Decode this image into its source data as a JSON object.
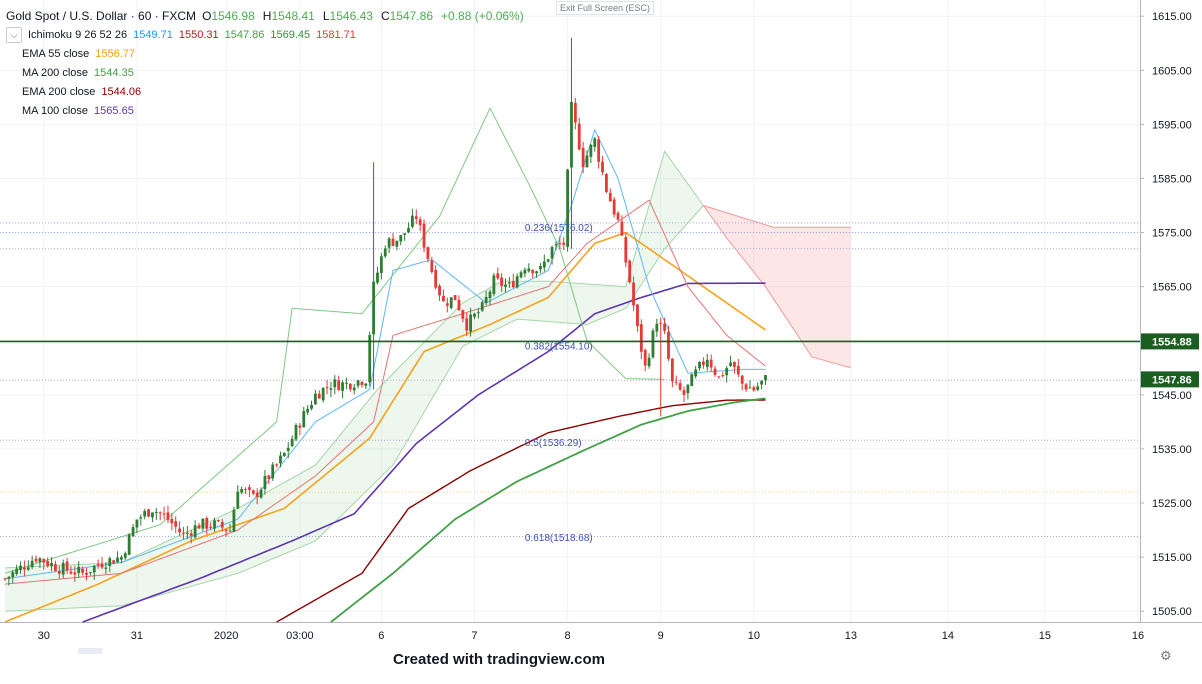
{
  "header": {
    "symbol_title": "Gold Spot / U.S. Dollar · 60 · FXCM",
    "ohlc": [
      {
        "k": "O",
        "v": "1546.98"
      },
      {
        "k": "H",
        "v": "1548.41"
      },
      {
        "k": "L",
        "v": "1546.43"
      },
      {
        "k": "C",
        "v": "1547.86"
      }
    ],
    "change": "+0.88 (+0.06%)",
    "exit_fullscreen": "Exit Full Screen (ESC)"
  },
  "indicators": [
    {
      "name": "Ichimoku 9 26 52 26",
      "values": [
        {
          "v": "1549.71",
          "color": "#2196f3"
        },
        {
          "v": "1550.31",
          "color": "#b71c1c"
        },
        {
          "v": "1547.86",
          "color": "#43a047"
        },
        {
          "v": "1569.45",
          "color": "#388e3c"
        },
        {
          "v": "1581.71",
          "color": "#e53935"
        }
      ]
    },
    {
      "name": "EMA 55 close",
      "values": [
        {
          "v": "1556.77",
          "color": "#f7a21b"
        }
      ]
    },
    {
      "name": "MA 200 close",
      "values": [
        {
          "v": "1544.35",
          "color": "#43a047"
        }
      ]
    },
    {
      "name": "EMA 200 close",
      "values": [
        {
          "v": "1544.06",
          "color": "#8b0000"
        }
      ]
    },
    {
      "name": "MA 100 close",
      "values": [
        {
          "v": "1565.65",
          "color": "#5e35b1"
        }
      ]
    }
  ],
  "footer": {
    "credit": "Created with tradingview.com"
  },
  "chart_data": {
    "type": "candlestick",
    "ylim": [
      1503,
      1618
    ],
    "y_ticks": [
      1505,
      1515,
      1525,
      1535,
      1545,
      1555,
      1565,
      1575,
      1585,
      1595,
      1605,
      1615
    ],
    "y_tick_labels": [
      "1505.00",
      "1515.00",
      "1525.00",
      "1535.00",
      "1545.00",
      "1555.00",
      "1565.00",
      "1575.00",
      "1585.00",
      "1595.00",
      "1605.00",
      "1615.00"
    ],
    "x_ticks": [
      {
        "label": "30",
        "bar": 10
      },
      {
        "label": "31",
        "bar": 34
      },
      {
        "label": "2020",
        "bar": 57
      },
      {
        "label": "03:00",
        "bar": 76
      },
      {
        "label": "6",
        "bar": 97
      },
      {
        "label": "7",
        "bar": 121
      },
      {
        "label": "8",
        "bar": 145
      },
      {
        "label": "9",
        "bar": 169
      },
      {
        "label": "10",
        "bar": 193
      },
      {
        "label": "13",
        "bar": 218
      },
      {
        "label": "14",
        "bar": 243
      },
      {
        "label": "15",
        "bar": 268
      },
      {
        "label": "16",
        "bar": 292
      }
    ],
    "bar_count": 197,
    "last_bar": 196,
    "price_marks": [
      {
        "label": "1554.88",
        "value": 1554.88,
        "color": "#1b5e20"
      },
      {
        "label": "1547.86",
        "value": 1547.86,
        "color": "#1b5e20"
      }
    ],
    "horizontal_line": {
      "value": 1554.88,
      "color": "#1b5e20"
    },
    "fibonacci": [
      {
        "label": "0.236(1576.02)",
        "value": 1576.02
      },
      {
        "label": "0.382(1554.10)",
        "value": 1554.1
      },
      {
        "label": "0.5(1536.29)",
        "value": 1536.29
      },
      {
        "label": "0.618(1518.68)",
        "value": 1518.68
      }
    ],
    "anchor_closes": [
      [
        0,
        1511
      ],
      [
        4,
        1513
      ],
      [
        8,
        1515
      ],
      [
        14,
        1513
      ],
      [
        20,
        1512
      ],
      [
        25,
        1514
      ],
      [
        30,
        1515
      ],
      [
        34,
        1522
      ],
      [
        38,
        1524
      ],
      [
        42,
        1522
      ],
      [
        46,
        1519
      ],
      [
        50,
        1521
      ],
      [
        54,
        1521
      ],
      [
        58,
        1520
      ],
      [
        60,
        1528
      ],
      [
        64,
        1526
      ],
      [
        68,
        1530
      ],
      [
        72,
        1534
      ],
      [
        76,
        1540
      ],
      [
        80,
        1545
      ],
      [
        84,
        1547
      ],
      [
        88,
        1547
      ],
      [
        93,
        1548
      ],
      [
        95,
        1565
      ],
      [
        98,
        1573
      ],
      [
        102,
        1574
      ],
      [
        106,
        1578
      ],
      [
        110,
        1568
      ],
      [
        113,
        1562
      ],
      [
        116,
        1563
      ],
      [
        119,
        1558
      ],
      [
        123,
        1561
      ],
      [
        126,
        1566
      ],
      [
        130,
        1565
      ],
      [
        134,
        1569
      ],
      [
        138,
        1568
      ],
      [
        141,
        1572
      ],
      [
        144,
        1573
      ],
      [
        146,
        1598
      ],
      [
        149,
        1588
      ],
      [
        152,
        1592
      ],
      [
        155,
        1583
      ],
      [
        158,
        1577
      ],
      [
        161,
        1566
      ],
      [
        163,
        1557
      ],
      [
        165,
        1550
      ],
      [
        168,
        1559
      ],
      [
        170,
        1556
      ],
      [
        172,
        1547
      ],
      [
        175,
        1545
      ],
      [
        178,
        1549
      ],
      [
        181,
        1552
      ],
      [
        184,
        1548
      ],
      [
        187,
        1551
      ],
      [
        190,
        1547
      ],
      [
        193,
        1546
      ],
      [
        196,
        1547.86
      ]
    ],
    "wick_spikes": [
      [
        95,
        1588,
        1546
      ],
      [
        146,
        1611,
        1572
      ],
      [
        169,
        1550,
        1541
      ]
    ],
    "series": [
      {
        "name": "EMA 55 close",
        "color": "#f7a21b",
        "width": 1.6,
        "points": [
          [
            0,
            1503
          ],
          [
            24,
            1510
          ],
          [
            48,
            1518
          ],
          [
            72,
            1524
          ],
          [
            94,
            1537
          ],
          [
            108,
            1553
          ],
          [
            125,
            1558
          ],
          [
            140,
            1563
          ],
          [
            152,
            1573
          ],
          [
            160,
            1575
          ],
          [
            168,
            1571
          ],
          [
            180,
            1565
          ],
          [
            192,
            1559
          ],
          [
            196,
            1557
          ]
        ]
      },
      {
        "name": "MA 100 close",
        "color": "#5e35b1",
        "width": 1.6,
        "points": [
          [
            20,
            1503
          ],
          [
            50,
            1511
          ],
          [
            74,
            1518
          ],
          [
            90,
            1523
          ],
          [
            106,
            1536
          ],
          [
            122,
            1545
          ],
          [
            140,
            1553
          ],
          [
            152,
            1560
          ],
          [
            164,
            1563
          ],
          [
            176,
            1565.6
          ],
          [
            196,
            1565.65
          ]
        ]
      },
      {
        "name": "EMA 200 close",
        "color": "#8b0000",
        "width": 1.4,
        "points": [
          [
            70,
            1503
          ],
          [
            92,
            1512
          ],
          [
            104,
            1524
          ],
          [
            120,
            1531
          ],
          [
            140,
            1538
          ],
          [
            158,
            1541
          ],
          [
            172,
            1543
          ],
          [
            186,
            1544
          ],
          [
            196,
            1544.06
          ]
        ]
      },
      {
        "name": "MA 200 close",
        "color": "#43a047",
        "width": 1.8,
        "points": [
          [
            84,
            1503
          ],
          [
            100,
            1512
          ],
          [
            116,
            1522
          ],
          [
            132,
            1529
          ],
          [
            150,
            1535
          ],
          [
            164,
            1539.5
          ],
          [
            176,
            1542
          ],
          [
            188,
            1543.6
          ],
          [
            196,
            1544.35
          ]
        ]
      },
      {
        "name": "Ichimoku conversion",
        "color": "#64b5f6",
        "width": 1,
        "points": [
          [
            0,
            1511
          ],
          [
            30,
            1514
          ],
          [
            60,
            1522
          ],
          [
            80,
            1540
          ],
          [
            94,
            1546
          ],
          [
            100,
            1568
          ],
          [
            110,
            1570
          ],
          [
            124,
            1562
          ],
          [
            140,
            1568
          ],
          [
            146,
            1580
          ],
          [
            152,
            1594
          ],
          [
            158,
            1585
          ],
          [
            166,
            1565
          ],
          [
            176,
            1549
          ],
          [
            190,
            1549.7
          ],
          [
            196,
            1549.71
          ]
        ]
      },
      {
        "name": "Ichimoku base",
        "color": "#e57373",
        "width": 1,
        "points": [
          [
            0,
            1510
          ],
          [
            30,
            1512
          ],
          [
            60,
            1520
          ],
          [
            80,
            1530
          ],
          [
            95,
            1540
          ],
          [
            100,
            1556
          ],
          [
            118,
            1560
          ],
          [
            140,
            1565
          ],
          [
            150,
            1573
          ],
          [
            166,
            1581
          ],
          [
            176,
            1565
          ],
          [
            186,
            1556
          ],
          [
            196,
            1550.31
          ]
        ]
      },
      {
        "name": "Ichimoku lagging",
        "color": "#81c784",
        "width": 1,
        "points": [
          [
            0,
            1512
          ],
          [
            40,
            1521
          ],
          [
            70,
            1540
          ],
          [
            74,
            1561
          ],
          [
            92,
            1560
          ],
          [
            112,
            1578
          ],
          [
            125,
            1598
          ],
          [
            135,
            1584
          ],
          [
            143,
            1572
          ],
          [
            150,
            1555
          ],
          [
            160,
            1548
          ],
          [
            170,
            1547.86
          ]
        ]
      }
    ],
    "cloud_segments": [
      {
        "color": "rgba(76,175,80,0.10)",
        "edge": "#a5d6a7",
        "upper": [
          [
            0,
            1513
          ],
          [
            30,
            1514
          ],
          [
            60,
            1524
          ],
          [
            80,
            1532
          ],
          [
            96,
            1546
          ],
          [
            118,
            1562
          ],
          [
            128,
            1566
          ],
          [
            140,
            1566
          ],
          [
            160,
            1565
          ],
          [
            170,
            1590
          ],
          [
            180,
            1580
          ]
        ],
        "lower": [
          [
            180,
            1580
          ],
          [
            170,
            1572
          ],
          [
            160,
            1561
          ],
          [
            150,
            1558
          ],
          [
            132,
            1559
          ],
          [
            118,
            1554
          ],
          [
            100,
            1532
          ],
          [
            80,
            1518
          ],
          [
            60,
            1512
          ],
          [
            30,
            1506
          ],
          [
            0,
            1505
          ]
        ]
      },
      {
        "color": "rgba(239,83,80,0.14)",
        "edge": "#ef9a9a",
        "upper": [
          [
            180,
            1580
          ],
          [
            198,
            1576
          ],
          [
            218,
            1576
          ]
        ],
        "lower": [
          [
            218,
            1550
          ],
          [
            208,
            1552
          ],
          [
            196,
            1565
          ],
          [
            186,
            1574
          ],
          [
            180,
            1580
          ]
        ]
      }
    ],
    "dotted_levels": [
      {
        "value": 1576.8,
        "color": "#9fa8da"
      },
      {
        "value": 1575.0,
        "color": "#9fa8da"
      },
      {
        "value": 1572.0,
        "color": "#9fa8da"
      },
      {
        "value": 1547.7,
        "color": "#9fa8da"
      },
      {
        "value": 1536.6,
        "color": "#9fa8da"
      },
      {
        "value": 1527.0,
        "color": "#ffd180"
      },
      {
        "value": 1518.8,
        "color": "#9fa8da"
      }
    ]
  }
}
